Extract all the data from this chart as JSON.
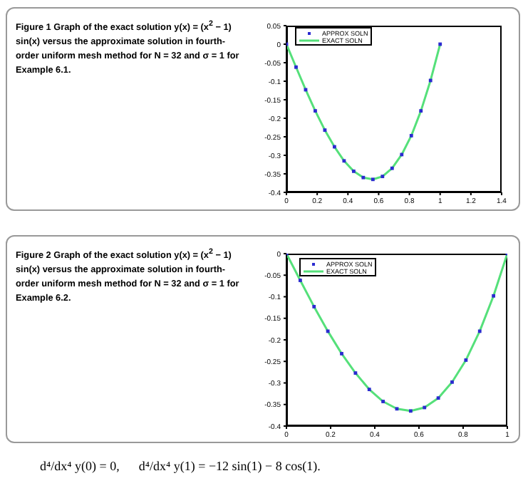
{
  "chart_data": [
    {
      "type": "line",
      "title": "Figure 1  Graph of the exact solution y(x) = (x$^{2}$ − 1) sin(x) versus the approximate solution in fourth-order uniform mesh method for N = 32 and σ = 1 for Example 6.1.",
      "x": [
        0,
        0.0625,
        0.125,
        0.1875,
        0.25,
        0.3125,
        0.375,
        0.4375,
        0.5,
        0.5625,
        0.625,
        0.6875,
        0.75,
        0.8125,
        0.875,
        0.9375,
        1
      ],
      "series": [
        {
          "name": "APPROX SOLN",
          "type": "scatter",
          "marker": "square",
          "color": "#2b2bd0",
          "values": [
            0,
            -0.062,
            -0.123,
            -0.18,
            -0.232,
            -0.277,
            -0.315,
            -0.343,
            -0.36,
            -0.365,
            -0.357,
            -0.335,
            -0.298,
            -0.247,
            -0.18,
            -0.098,
            0
          ]
        },
        {
          "name": "EXACT SOLN",
          "type": "line",
          "marker": "none",
          "line_style": "solid",
          "color": "#55e07a",
          "values": [
            0,
            -0.062,
            -0.123,
            -0.18,
            -0.232,
            -0.277,
            -0.315,
            -0.343,
            -0.36,
            -0.365,
            -0.357,
            -0.335,
            -0.298,
            -0.247,
            -0.18,
            -0.098,
            0
          ]
        }
      ],
      "xlim": [
        0,
        1.4
      ],
      "xticks": [
        0,
        0.2,
        0.4,
        0.6,
        0.8,
        1,
        1.2,
        1.4
      ],
      "ylim": [
        -0.4,
        0.05
      ],
      "yticks": [
        -0.4,
        -0.35,
        -0.3,
        -0.25,
        -0.2,
        -0.15,
        -0.1,
        -0.05,
        0,
        0.05
      ],
      "grid": false,
      "legend": "top left"
    },
    {
      "type": "line",
      "title": "Figure 2  Graph of the exact solution y(x) = (x$^{2}$ − 1) sin(x) versus the approximate solution in fourth-order uniform mesh method for N = 32 and σ = 1 for Example 6.2.",
      "x": [
        0,
        0.0625,
        0.125,
        0.1875,
        0.25,
        0.3125,
        0.375,
        0.4375,
        0.5,
        0.5625,
        0.625,
        0.6875,
        0.75,
        0.8125,
        0.875,
        0.9375,
        1
      ],
      "series": [
        {
          "name": "APPROX SOLN",
          "type": "scatter",
          "marker": "square",
          "color": "#2b2bd0",
          "values": [
            0,
            -0.062,
            -0.123,
            -0.18,
            -0.232,
            -0.277,
            -0.315,
            -0.343,
            -0.36,
            -0.365,
            -0.357,
            -0.335,
            -0.298,
            -0.247,
            -0.18,
            -0.098,
            0
          ]
        },
        {
          "name": "EXACT SOLN",
          "type": "line",
          "marker": "none",
          "line_style": "solid",
          "color": "#55e07a",
          "values": [
            0,
            -0.062,
            -0.123,
            -0.18,
            -0.232,
            -0.277,
            -0.315,
            -0.343,
            -0.36,
            -0.365,
            -0.357,
            -0.335,
            -0.298,
            -0.247,
            -0.18,
            -0.098,
            0
          ]
        }
      ],
      "xlim": [
        0,
        1
      ],
      "xticks": [
        0,
        0.2,
        0.4,
        0.6,
        0.8,
        1
      ],
      "ylim": [
        -0.4,
        0
      ],
      "yticks": [
        -0.4,
        -0.35,
        -0.3,
        -0.25,
        -0.2,
        -0.15,
        -0.1,
        -0.05,
        0
      ],
      "grid": false,
      "legend": "top left",
      "annotations": [
        "d⁴/dx⁴ y(0) = 0,      d⁴/dx⁴ y(1) = −12 sin(1) − 8 cos(1)."
      ]
    }
  ]
}
